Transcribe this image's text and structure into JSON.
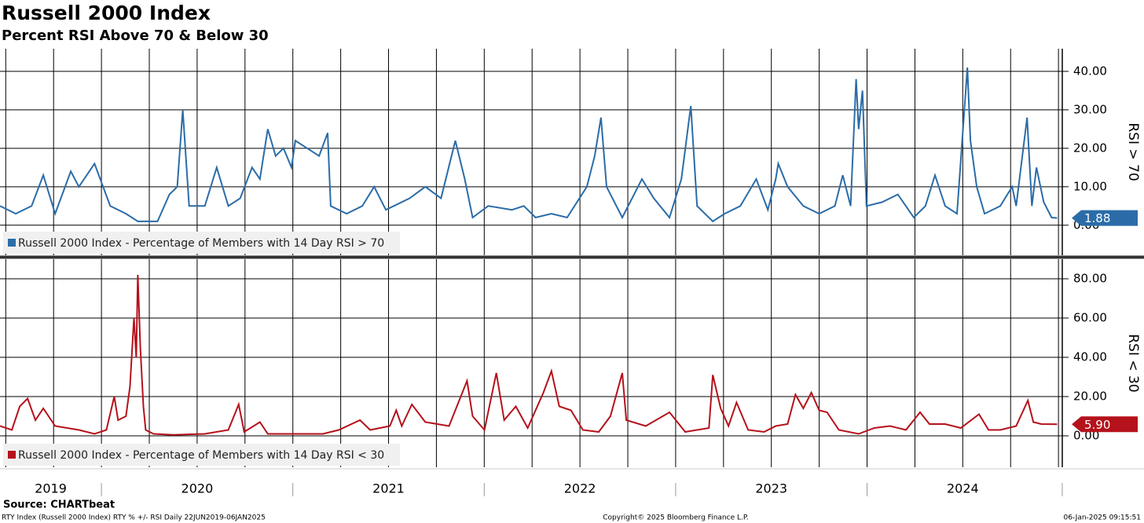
{
  "title": "Russell 2000 Index",
  "subtitle": "Percent RSI Above 70 & Below 30",
  "source": "Source: CHARTbeat",
  "footer": [
    "RTY Index (Russell 2000 Index) RTY % +/- RSI  Daily 22JUN2019-06JAN2025",
    "Copyright© 2025 Bloomberg Finance L.P.",
    "06-Jan-2025 09:15:51"
  ],
  "chart_data": [
    {
      "type": "line",
      "ylabel": "RSI > 70",
      "xlim": [
        2019.47,
        2025.02
      ],
      "ylim": [
        -7.8,
        45.9
      ],
      "yticks": [
        {
          "value": 0,
          "label": "0.00"
        },
        {
          "value": 10,
          "label": "10.00"
        },
        {
          "value": 20,
          "label": "20.00"
        },
        {
          "value": 30,
          "label": "30.00"
        },
        {
          "value": 40,
          "label": "40.00"
        }
      ],
      "grid": true,
      "x": [
        2019.47,
        2019.552,
        2019.635,
        2019.696,
        2019.758,
        2019.84,
        2019.882,
        2019.964,
        2020.046,
        2020.128,
        2020.19,
        2020.293,
        2020.355,
        2020.396,
        2020.425,
        2020.458,
        2020.54,
        2020.602,
        2020.663,
        2020.725,
        2020.787,
        2020.828,
        2020.869,
        2020.91,
        2020.951,
        2020.993,
        2021.013,
        2021.075,
        2021.137,
        2021.182,
        2021.198,
        2021.281,
        2021.363,
        2021.425,
        2021.486,
        2021.61,
        2021.692,
        2021.774,
        2021.849,
        2021.898,
        2021.939,
        2022.021,
        2022.145,
        2022.207,
        2022.268,
        2022.351,
        2022.433,
        2022.536,
        2022.577,
        2022.61,
        2022.639,
        2022.721,
        2022.824,
        2022.886,
        2022.968,
        2023.03,
        2023.079,
        2023.112,
        2023.194,
        2023.256,
        2023.338,
        2023.421,
        2023.482,
        2023.523,
        2023.536,
        2023.585,
        2023.667,
        2023.75,
        2023.832,
        2023.873,
        2023.914,
        2023.943,
        2023.956,
        2023.976,
        2023.997,
        2024.079,
        2024.161,
        2024.244,
        2024.305,
        2024.355,
        2024.408,
        2024.47,
        2024.524,
        2024.54,
        2024.573,
        2024.614,
        2024.696,
        2024.758,
        2024.779,
        2024.836,
        2024.861,
        2024.885,
        2024.923,
        2024.964,
        2024.993
      ],
      "series": [
        {
          "name": "Russell 2000 Index - Percentage of Members with 14 Day RSI > 70",
          "color": "#2b6ca8",
          "end_label": "1.88",
          "values": [
            5,
            3,
            5,
            13,
            3,
            14,
            10,
            16,
            5,
            3,
            1,
            1,
            8,
            10,
            30,
            5,
            5,
            15,
            5,
            7,
            15,
            12,
            25,
            18,
            20,
            15,
            22,
            20,
            18,
            24,
            5,
            3,
            5,
            10,
            4,
            7,
            10,
            7,
            22,
            12,
            2,
            5,
            4,
            5,
            2,
            3,
            2,
            10,
            18,
            28,
            10,
            2,
            12,
            7,
            2,
            12,
            31,
            5,
            1,
            3,
            5,
            12,
            4,
            12,
            16,
            10,
            5,
            3,
            5,
            13,
            5,
            38,
            25,
            35,
            5,
            6,
            8,
            2,
            5,
            13,
            5,
            3,
            41,
            22,
            10,
            3,
            5,
            10,
            5,
            28,
            5,
            15,
            6,
            2,
            1.88
          ]
        }
      ]
    },
    {
      "type": "line",
      "ylabel": "RSI < 30",
      "xlim": [
        2019.47,
        2025.02
      ],
      "ylim": [
        -16,
        90
      ],
      "yticks": [
        {
          "value": 0,
          "label": "0.00"
        },
        {
          "value": 20,
          "label": "20.00"
        },
        {
          "value": 40,
          "label": "40.00"
        },
        {
          "value": 60,
          "label": "60.00"
        },
        {
          "value": 80,
          "label": "80.00"
        }
      ],
      "grid": true,
      "xticks": [
        2019,
        2020,
        2021,
        2022,
        2023,
        2024
      ],
      "x": [
        2019.47,
        2019.532,
        2019.573,
        2019.614,
        2019.655,
        2019.696,
        2019.758,
        2019.882,
        2019.964,
        2020.026,
        2020.067,
        2020.087,
        2020.128,
        2020.149,
        2020.17,
        2020.182,
        2020.19,
        2020.203,
        2020.219,
        2020.231,
        2020.272,
        2020.375,
        2020.54,
        2020.663,
        2020.717,
        2020.746,
        2020.828,
        2020.869,
        2021.034,
        2021.157,
        2021.24,
        2021.351,
        2021.404,
        2021.507,
        2021.54,
        2021.569,
        2021.622,
        2021.692,
        2021.816,
        2021.91,
        2021.939,
        2022.001,
        2022.063,
        2022.104,
        2022.165,
        2022.227,
        2022.309,
        2022.351,
        2022.392,
        2022.453,
        2022.515,
        2022.598,
        2022.659,
        2022.721,
        2022.742,
        2022.844,
        2022.968,
        2023.05,
        2023.174,
        2023.194,
        2023.235,
        2023.276,
        2023.318,
        2023.379,
        2023.462,
        2023.523,
        2023.585,
        2023.626,
        2023.667,
        2023.709,
        2023.75,
        2023.791,
        2023.853,
        2023.956,
        2024.038,
        2024.12,
        2024.203,
        2024.277,
        2024.326,
        2024.408,
        2024.49,
        2024.585,
        2024.635,
        2024.696,
        2024.779,
        2024.84,
        2024.869,
        2024.91,
        2024.993
      ],
      "series": [
        {
          "name": "Russell 2000 Index - Percentage of Members with 14 Day RSI < 30",
          "color": "#b5121b",
          "end_label": "5.90",
          "values": [
            5,
            3,
            15,
            19,
            8,
            14,
            5,
            3,
            1,
            3,
            20,
            8,
            10,
            25,
            60,
            40,
            82,
            45,
            15,
            3,
            1,
            0.5,
            1,
            3,
            16,
            2,
            7,
            1,
            1,
            1,
            3,
            8,
            3,
            5,
            13,
            5,
            16,
            7,
            5,
            28,
            10,
            3,
            32,
            8,
            15,
            4,
            22,
            33,
            15,
            13,
            3,
            2,
            10,
            32,
            8,
            5,
            12,
            2,
            4,
            31,
            14,
            5,
            17,
            3,
            2,
            5,
            6,
            21,
            14,
            22,
            13,
            12,
            3,
            1,
            4,
            5,
            3,
            12,
            6,
            6,
            4,
            11,
            3,
            3,
            5,
            18,
            7,
            6,
            5.9
          ]
        }
      ]
    }
  ]
}
